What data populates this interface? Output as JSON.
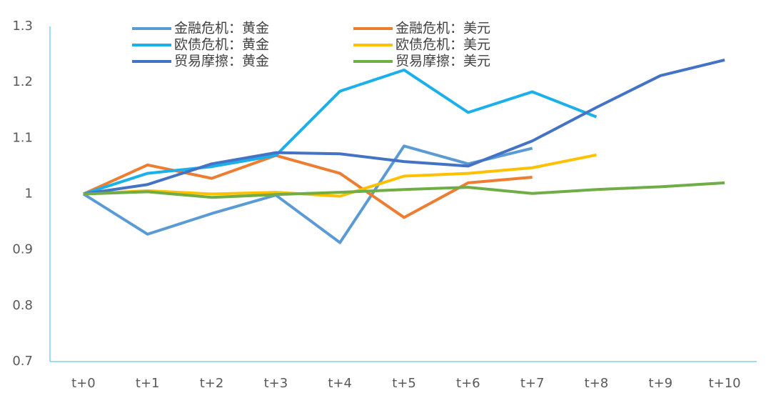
{
  "chart_data": {
    "type": "line",
    "categories": [
      "t+0",
      "t+1",
      "t+2",
      "t+3",
      "t+4",
      "t+5",
      "t+6",
      "t+7",
      "t+8",
      "t+9",
      "t+10"
    ],
    "series": [
      {
        "name": "金融危机：黄金",
        "color": "#5B9BD5",
        "values": [
          1,
          0.928,
          0.965,
          0.998,
          0.913,
          1.086,
          1.054,
          1.082,
          null,
          null,
          null
        ]
      },
      {
        "name": "金融危机：美元",
        "color": "#ED7D31",
        "values": [
          1,
          1.052,
          1.028,
          1.069,
          1.037,
          0.958,
          1.02,
          1.03,
          null,
          null,
          null
        ]
      },
      {
        "name": "欧债危机：黄金",
        "color": "#1AB0EA",
        "values": [
          1,
          1.037,
          1.049,
          1.069,
          1.184,
          1.222,
          1.146,
          1.183,
          1.138,
          null,
          null
        ]
      },
      {
        "name": "欧债危机：美元",
        "color": "#FFC000",
        "values": [
          1,
          1.006,
          1.0,
          1.003,
          0.996,
          1.032,
          1.037,
          1.047,
          1.07,
          null,
          null
        ]
      },
      {
        "name": "贸易摩擦：黄金",
        "color": "#4472C4",
        "values": [
          1,
          1.017,
          1.054,
          1.074,
          1.072,
          1.058,
          1.05,
          1.095,
          1.155,
          1.212,
          1.24
        ]
      },
      {
        "name": "贸易摩擦：美元",
        "color": "#70AD47",
        "values": [
          1,
          1.004,
          0.994,
          0.999,
          1.003,
          1.008,
          1.012,
          1.001,
          1.008,
          1.013,
          1.02
        ]
      }
    ],
    "ylim": [
      0.7,
      1.3
    ],
    "yticks": [
      0.7,
      0.8,
      0.9,
      1,
      1.1,
      1.2,
      1.3
    ],
    "grid": false,
    "legend": "top"
  }
}
